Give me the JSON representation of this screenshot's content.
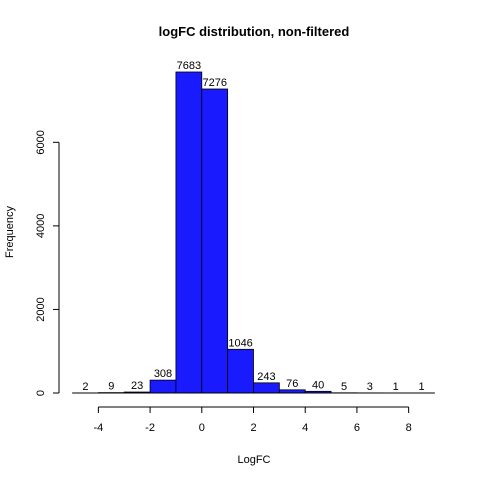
{
  "chart_data": {
    "type": "bar",
    "title": "logFC distribution, non-filtered",
    "xlabel": "LogFC",
    "ylabel": "Frequency",
    "bin_edges": [
      -5,
      -4,
      -3,
      -2,
      -1,
      0,
      1,
      2,
      3,
      4,
      5,
      6,
      7,
      8,
      9
    ],
    "values": [
      2,
      9,
      23,
      308,
      7683,
      7276,
      1046,
      243,
      76,
      40,
      5,
      3,
      1,
      1
    ],
    "data_labels": [
      "2",
      "9",
      "23",
      "308",
      "7683",
      "7276",
      "1046",
      "243",
      "76",
      "40",
      "5",
      "3",
      "1",
      "1"
    ],
    "xlim": [
      -5,
      9
    ],
    "ylim": [
      0,
      7683
    ],
    "x_ticks": [
      -4,
      -2,
      0,
      2,
      4,
      6,
      8
    ],
    "x_tick_labels": [
      "-4",
      "-2",
      "0",
      "2",
      "4",
      "6",
      "8"
    ],
    "y_ticks": [
      0,
      2000,
      4000,
      6000
    ],
    "y_tick_labels": [
      "0",
      "2000",
      "4000",
      "6000"
    ],
    "bar_color": "#1A1AFF",
    "grid": false,
    "legend": "none"
  }
}
